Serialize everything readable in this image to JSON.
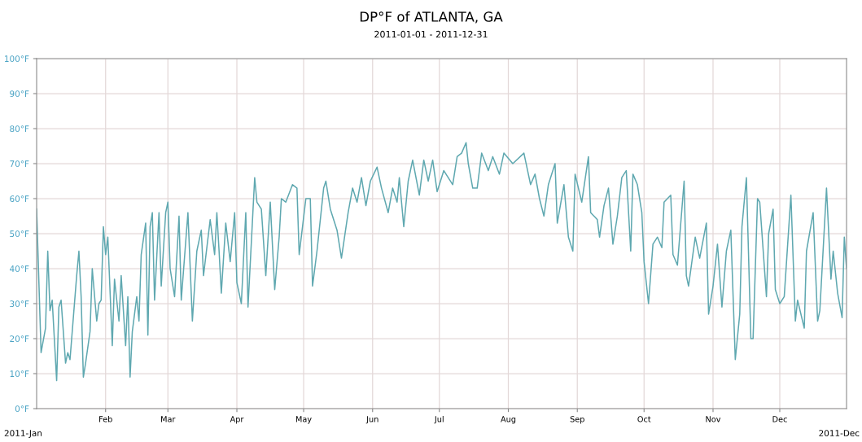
{
  "chart_data": {
    "type": "line",
    "title": "DP°F of ATLANTA, GA",
    "subtitle": "2011-01-01 - 2011-12-31",
    "annotations": [
      "2011-Jan",
      "2011-Dec"
    ],
    "xlim": [
      "2011-01-01",
      "2011-12-31"
    ],
    "xticks": [
      {
        "value": "2011-02-01",
        "label": "Feb"
      },
      {
        "value": "2011-03-01",
        "label": "Mar"
      },
      {
        "value": "2011-04-01",
        "label": "Apr"
      },
      {
        "value": "2011-05-01",
        "label": "May"
      },
      {
        "value": "2011-06-01",
        "label": "Jun"
      },
      {
        "value": "2011-07-01",
        "label": "Jul"
      },
      {
        "value": "2011-08-01",
        "label": "Aug"
      },
      {
        "value": "2011-09-01",
        "label": "Sep"
      },
      {
        "value": "2011-10-01",
        "label": "Oct"
      },
      {
        "value": "2011-11-01",
        "label": "Nov"
      },
      {
        "value": "2011-12-01",
        "label": "Dec"
      }
    ],
    "ylim": [
      0,
      100
    ],
    "yticks": [
      {
        "value": 0,
        "label": "0°F"
      },
      {
        "value": 10,
        "label": "10°F"
      },
      {
        "value": 20,
        "label": "20°F"
      },
      {
        "value": 30,
        "label": "30°F"
      },
      {
        "value": 40,
        "label": "40°F"
      },
      {
        "value": 50,
        "label": "50°F"
      },
      {
        "value": 60,
        "label": "60°F"
      },
      {
        "value": 70,
        "label": "70°F"
      },
      {
        "value": 80,
        "label": "80°F"
      },
      {
        "value": 90,
        "label": "90°F"
      },
      {
        "value": 100,
        "label": "100°F"
      }
    ],
    "grid": true,
    "legend": false,
    "marker": "none",
    "line_style": "solid",
    "x": [
      "2011-01-01",
      "2011-01-03",
      "2011-01-05",
      "2011-01-06",
      "2011-01-07",
      "2011-01-08",
      "2011-01-10",
      "2011-01-11",
      "2011-01-12",
      "2011-01-14",
      "2011-01-15",
      "2011-01-16",
      "2011-01-19",
      "2011-01-20",
      "2011-01-21",
      "2011-01-22",
      "2011-01-23",
      "2011-01-25",
      "2011-01-26",
      "2011-01-28",
      "2011-01-29",
      "2011-01-30",
      "2011-01-31",
      "2011-02-01",
      "2011-02-02",
      "2011-02-04",
      "2011-02-05",
      "2011-02-07",
      "2011-02-08",
      "2011-02-10",
      "2011-02-11",
      "2011-02-12",
      "2011-02-13",
      "2011-02-15",
      "2011-02-16",
      "2011-02-17",
      "2011-02-19",
      "2011-02-20",
      "2011-02-21",
      "2011-02-22",
      "2011-02-23",
      "2011-02-25",
      "2011-02-26",
      "2011-02-28",
      "2011-03-01",
      "2011-03-02",
      "2011-03-04",
      "2011-03-06",
      "2011-03-07",
      "2011-03-10",
      "2011-03-12",
      "2011-03-14",
      "2011-03-16",
      "2011-03-17",
      "2011-03-20",
      "2011-03-22",
      "2011-03-23",
      "2011-03-24",
      "2011-03-25",
      "2011-03-27",
      "2011-03-29",
      "2011-03-31",
      "2011-04-01",
      "2011-04-03",
      "2011-04-05",
      "2011-04-06",
      "2011-04-09",
      "2011-04-10",
      "2011-04-12",
      "2011-04-14",
      "2011-04-16",
      "2011-04-18",
      "2011-04-20",
      "2011-04-21",
      "2011-04-23",
      "2011-04-26",
      "2011-04-28",
      "2011-04-29",
      "2011-05-02",
      "2011-05-04",
      "2011-05-05",
      "2011-05-07",
      "2011-05-10",
      "2011-05-11",
      "2011-05-13",
      "2011-05-16",
      "2011-05-18",
      "2011-05-21",
      "2011-05-23",
      "2011-05-25",
      "2011-05-27",
      "2011-05-29",
      "2011-05-31",
      "2011-06-03",
      "2011-06-05",
      "2011-06-08",
      "2011-06-10",
      "2011-06-12",
      "2011-06-13",
      "2011-06-15",
      "2011-06-17",
      "2011-06-19",
      "2011-06-22",
      "2011-06-24",
      "2011-06-26",
      "2011-06-28",
      "2011-06-30",
      "2011-07-03",
      "2011-07-07",
      "2011-07-09",
      "2011-07-11",
      "2011-07-13",
      "2011-07-14",
      "2011-07-16",
      "2011-07-18",
      "2011-07-20",
      "2011-07-23",
      "2011-07-25",
      "2011-07-28",
      "2011-07-30",
      "2011-08-03",
      "2011-08-08",
      "2011-08-11",
      "2011-08-13",
      "2011-08-15",
      "2011-08-17",
      "2011-08-19",
      "2011-08-22",
      "2011-08-23",
      "2011-08-26",
      "2011-08-28",
      "2011-08-30",
      "2011-08-31",
      "2011-09-03",
      "2011-09-06",
      "2011-09-07",
      "2011-09-10",
      "2011-09-11",
      "2011-09-13",
      "2011-09-15",
      "2011-09-17",
      "2011-09-19",
      "2011-09-21",
      "2011-09-23",
      "2011-09-25",
      "2011-09-26",
      "2011-09-28",
      "2011-09-30",
      "2011-10-01",
      "2011-10-03",
      "2011-10-05",
      "2011-10-07",
      "2011-10-09",
      "2011-10-10",
      "2011-10-13",
      "2011-10-14",
      "2011-10-16",
      "2011-10-19",
      "2011-10-20",
      "2011-10-21",
      "2011-10-24",
      "2011-10-26",
      "2011-10-29",
      "2011-10-30",
      "2011-11-01",
      "2011-11-03",
      "2011-11-05",
      "2011-11-07",
      "2011-11-09",
      "2011-11-11",
      "2011-11-13",
      "2011-11-14",
      "2011-11-16",
      "2011-11-18",
      "2011-11-19",
      "2011-11-21",
      "2011-11-22",
      "2011-11-25",
      "2011-11-26",
      "2011-11-28",
      "2011-11-29",
      "2011-12-01",
      "2011-12-03",
      "2011-12-06",
      "2011-12-08",
      "2011-12-09",
      "2011-12-12",
      "2011-12-13",
      "2011-12-16",
      "2011-12-18",
      "2011-12-19",
      "2011-12-22",
      "2011-12-24",
      "2011-12-25",
      "2011-12-27",
      "2011-12-29",
      "2011-12-30",
      "2011-12-31"
    ],
    "series": [
      {
        "color": "#5fa8b0",
        "values": [
          57,
          16,
          23,
          45,
          28,
          31,
          8,
          29,
          31,
          13,
          16,
          14,
          38,
          45,
          32,
          9,
          13,
          22,
          40,
          25,
          30,
          31,
          52,
          44,
          49,
          18,
          37,
          25,
          38,
          18,
          32,
          9,
          22,
          32,
          25,
          44,
          53,
          21,
          52,
          56,
          31,
          56,
          35,
          56,
          59,
          40,
          32,
          55,
          31,
          56,
          25,
          45,
          51,
          38,
          54,
          44,
          56,
          45,
          33,
          53,
          42,
          56,
          36,
          30,
          56,
          29,
          66,
          59,
          57,
          38,
          59,
          34,
          49,
          60,
          59,
          64,
          63,
          44,
          60,
          60,
          35,
          45,
          63,
          65,
          57,
          51,
          43,
          56,
          63,
          59,
          66,
          58,
          65,
          69,
          63,
          56,
          63,
          59,
          66,
          52,
          65,
          71,
          61,
          71,
          65,
          71,
          62,
          68,
          64,
          72,
          73,
          76,
          70,
          63,
          63,
          73,
          68,
          72,
          67,
          73,
          70,
          73,
          64,
          67,
          60,
          55,
          64,
          70,
          53,
          64,
          49,
          45,
          67,
          59,
          72,
          56,
          54,
          49,
          58,
          63,
          47,
          55,
          66,
          68,
          45,
          67,
          64,
          56,
          42,
          30,
          47,
          49,
          46,
          59,
          61,
          44,
          41,
          65,
          38,
          35,
          49,
          43,
          53,
          27,
          35,
          47,
          29,
          45,
          51,
          14,
          27,
          52,
          66,
          20,
          20,
          60,
          59,
          32,
          50,
          57,
          34,
          30,
          32,
          61,
          25,
          31,
          23,
          45,
          56,
          25,
          28,
          63,
          37,
          45,
          33,
          26,
          49,
          40
        ]
      }
    ]
  }
}
